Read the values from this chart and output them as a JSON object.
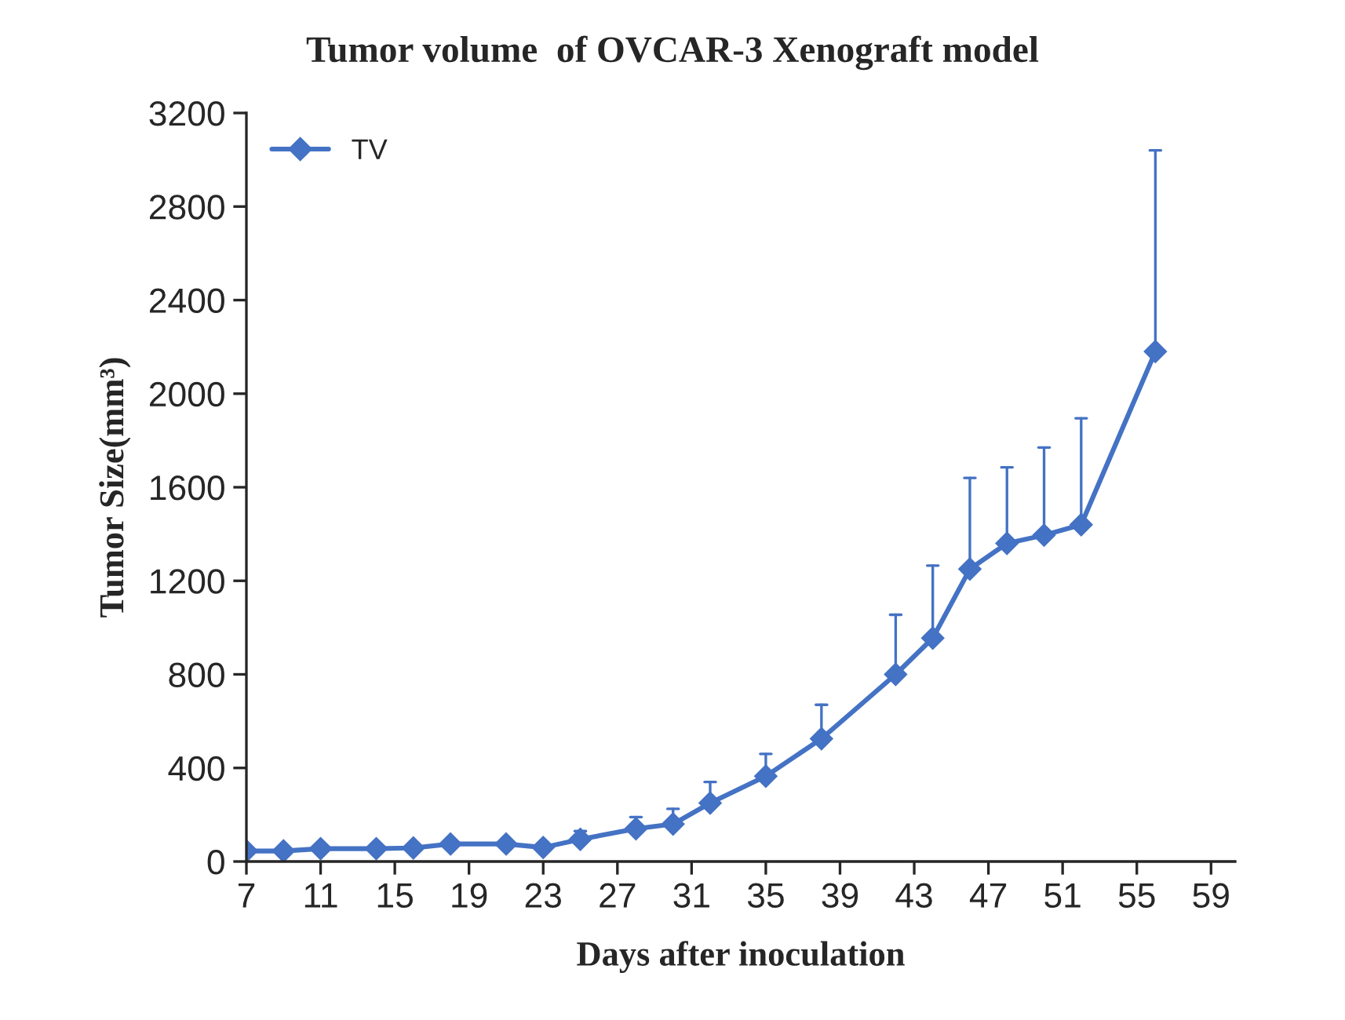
{
  "chart_data": {
    "type": "line",
    "title": "Tumor volume  of OVCAR-3 Xenograft model",
    "xlabel": "Days after inoculation",
    "ylabel": "Tumor Size(mm³)",
    "x": [
      7,
      9,
      11,
      14,
      16,
      18,
      21,
      23,
      25,
      28,
      30,
      32,
      35,
      38,
      42,
      44,
      46,
      48,
      50,
      52,
      56
    ],
    "series": [
      {
        "name": "TV",
        "color": "#4472c4",
        "values": [
          45,
          45,
          55,
          55,
          58,
          75,
          75,
          60,
          95,
          140,
          160,
          250,
          365,
          525,
          800,
          955,
          1250,
          1360,
          1395,
          1440,
          2180
        ],
        "errors": [
          null,
          null,
          null,
          null,
          null,
          null,
          null,
          null,
          [
            95,
            130
          ],
          [
            140,
            190
          ],
          [
            160,
            225
          ],
          [
            250,
            340
          ],
          [
            365,
            460
          ],
          [
            525,
            670
          ],
          [
            800,
            1055
          ],
          [
            955,
            1265
          ],
          [
            1250,
            1640
          ],
          [
            1360,
            1685
          ],
          [
            1395,
            1770
          ],
          [
            1440,
            1895
          ],
          [
            2180,
            3040
          ]
        ]
      }
    ],
    "xlim": [
      7,
      60.3
    ],
    "ylim": [
      0,
      3200
    ],
    "xticks": [
      7,
      11,
      15,
      19,
      23,
      27,
      31,
      35,
      39,
      43,
      47,
      51,
      55,
      59
    ],
    "yticks": [
      0,
      400,
      800,
      1200,
      1600,
      2000,
      2400,
      2800,
      3200
    ],
    "marker": "diamond",
    "line_style": "solid",
    "legend": "top left",
    "grid": false
  }
}
